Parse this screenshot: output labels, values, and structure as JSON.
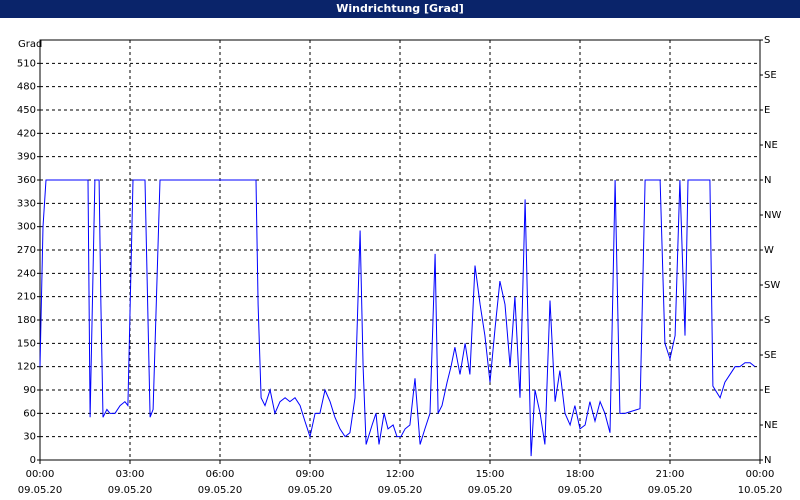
{
  "chart_data": {
    "type": "line",
    "title": "Windrichtung [Grad]",
    "y_label": "Grad",
    "color": "#0000ff",
    "grid": true,
    "xlim": [
      0,
      24
    ],
    "xticks": [
      {
        "value": 0,
        "label": "00:00"
      },
      {
        "value": 3,
        "label": "03:00"
      },
      {
        "value": 6,
        "label": "06:00"
      },
      {
        "value": 9,
        "label": "09:00"
      },
      {
        "value": 12,
        "label": "12:00"
      },
      {
        "value": 15,
        "label": "15:00"
      },
      {
        "value": 18,
        "label": "18:00"
      },
      {
        "value": 21,
        "label": "21:00"
      },
      {
        "value": 24,
        "label": "00:00"
      }
    ],
    "xtick_dates": [
      "09.05.20",
      "09.05.20",
      "09.05.20",
      "09.05.20",
      "09.05.20",
      "09.05.20",
      "09.05.20",
      "09.05.20",
      "10.05.20"
    ],
    "ylim": [
      0,
      540
    ],
    "yticks": [
      0,
      30,
      60,
      90,
      120,
      150,
      180,
      210,
      240,
      270,
      300,
      330,
      360,
      390,
      420,
      450,
      480,
      510
    ],
    "y2lim": [
      0,
      540
    ],
    "y2ticks": [
      {
        "value": 0,
        "label": "N"
      },
      {
        "value": 45,
        "label": "NE"
      },
      {
        "value": 90,
        "label": "E"
      },
      {
        "value": 135,
        "label": "SE"
      },
      {
        "value": 180,
        "label": "S"
      },
      {
        "value": 225,
        "label": "SW"
      },
      {
        "value": 270,
        "label": "W"
      },
      {
        "value": 315,
        "label": "NW"
      },
      {
        "value": 360,
        "label": "N"
      },
      {
        "value": 405,
        "label": "NE"
      },
      {
        "value": 450,
        "label": "E"
      },
      {
        "value": 495,
        "label": "SE"
      },
      {
        "value": 540,
        "label": "S"
      }
    ],
    "x": [
      0,
      0.1,
      0.2,
      1.53,
      1.6,
      1.67,
      1.83,
      1.97,
      2.03,
      2.1,
      2.23,
      2.33,
      2.5,
      2.67,
      2.83,
      2.93,
      3.1,
      3.2,
      3.5,
      3.67,
      3.77,
      4,
      7.2,
      7.27,
      7.37,
      7.5,
      7.67,
      7.83,
      8,
      8.17,
      8.33,
      8.5,
      8.67,
      8.83,
      9,
      9.17,
      9.33,
      9.5,
      9.67,
      9.83,
      10,
      10.17,
      10.33,
      10.5,
      10.67,
      10.77,
      10.87,
      11.07,
      11.2,
      11.3,
      11.47,
      11.6,
      11.77,
      11.9,
      12.03,
      12.17,
      12.33,
      12.5,
      12.67,
      12.83,
      13,
      13.17,
      13.27,
      13.4,
      13.57,
      13.7,
      13.83,
      14,
      14.17,
      14.33,
      14.5,
      14.67,
      14.83,
      15,
      15.17,
      15.33,
      15.5,
      15.67,
      15.83,
      16,
      16.17,
      16.37,
      16.5,
      16.67,
      16.83,
      17,
      17.17,
      17.33,
      17.5,
      17.67,
      17.83,
      18,
      18.17,
      18.33,
      18.5,
      18.67,
      18.83,
      19,
      19.17,
      19.33,
      19.5,
      19.67,
      19.83,
      20,
      20.17,
      20.67,
      20.83,
      21,
      21.17,
      21.33,
      21.43,
      21.5,
      21.6,
      21.77,
      22.33,
      22.43,
      22.67,
      22.83,
      23,
      23.17,
      23.33,
      23.5,
      23.67,
      23.83
    ],
    "values": [
      120,
      300,
      360,
      360,
      360,
      55,
      360,
      360,
      200,
      55,
      65,
      60,
      60,
      70,
      75,
      70,
      360,
      360,
      360,
      55,
      65,
      360,
      360,
      200,
      80,
      70,
      90,
      60,
      75,
      80,
      75,
      80,
      70,
      50,
      30,
      60,
      60,
      90,
      75,
      55,
      40,
      30,
      35,
      80,
      295,
      120,
      20,
      45,
      60,
      20,
      60,
      40,
      45,
      30,
      30,
      40,
      45,
      105,
      20,
      40,
      60,
      265,
      60,
      70,
      100,
      120,
      145,
      110,
      150,
      110,
      250,
      200,
      160,
      100,
      170,
      230,
      200,
      120,
      210,
      80,
      335,
      5,
      90,
      60,
      20,
      205,
      75,
      115,
      60,
      45,
      70,
      40,
      45,
      75,
      50,
      75,
      60,
      35,
      360,
      60,
      60,
      62,
      64,
      66,
      360,
      360,
      150,
      130,
      160,
      360,
      240,
      160,
      360,
      360,
      360,
      95,
      80,
      100,
      110,
      120,
      120,
      125,
      125,
      120
    ]
  }
}
